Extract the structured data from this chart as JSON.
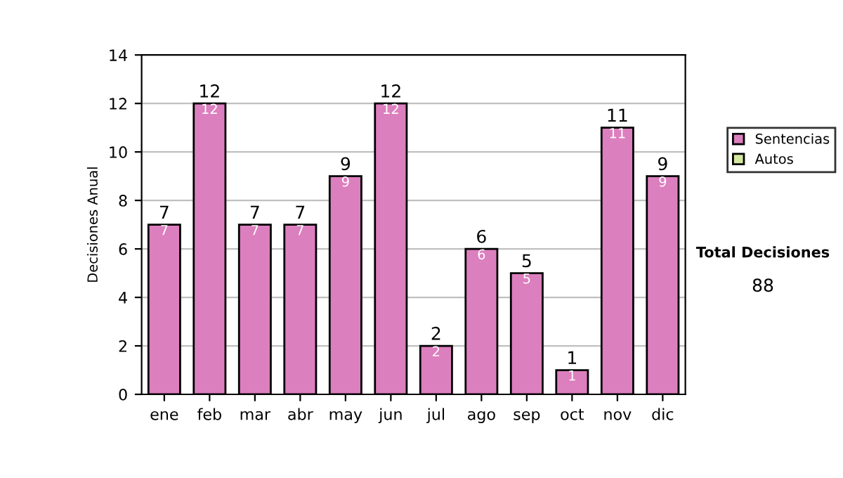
{
  "chart_data": {
    "type": "bar",
    "ylabel": "Decisiones Anual",
    "categories": [
      "ene",
      "feb",
      "mar",
      "abr",
      "may",
      "jun",
      "jul",
      "ago",
      "sep",
      "oct",
      "nov",
      "dic"
    ],
    "series": [
      {
        "name": "Sentencias",
        "color": "#dc7fbe",
        "values": [
          7,
          12,
          7,
          7,
          9,
          12,
          2,
          6,
          5,
          1,
          11,
          9
        ],
        "value_labels": [
          "7",
          "12",
          "7",
          "7",
          "9",
          "12",
          "2",
          "6",
          "5",
          "1",
          "11",
          "9"
        ]
      },
      {
        "name": "Autos",
        "color": "#d4e8a0",
        "values": [
          null,
          null,
          null,
          null,
          null,
          null,
          null,
          null,
          null,
          null,
          null,
          null
        ]
      }
    ],
    "totals": [
      "7",
      "12",
      "7",
      "7",
      "9",
      "12",
      "2",
      "6",
      "5",
      "1",
      "11",
      "9"
    ],
    "ylim": [
      0,
      14
    ],
    "yticks": [
      0,
      2,
      4,
      6,
      8,
      10,
      12,
      14
    ],
    "grid": "y",
    "legend": "right",
    "annotations": [
      "Total Decisiones",
      "88"
    ]
  }
}
